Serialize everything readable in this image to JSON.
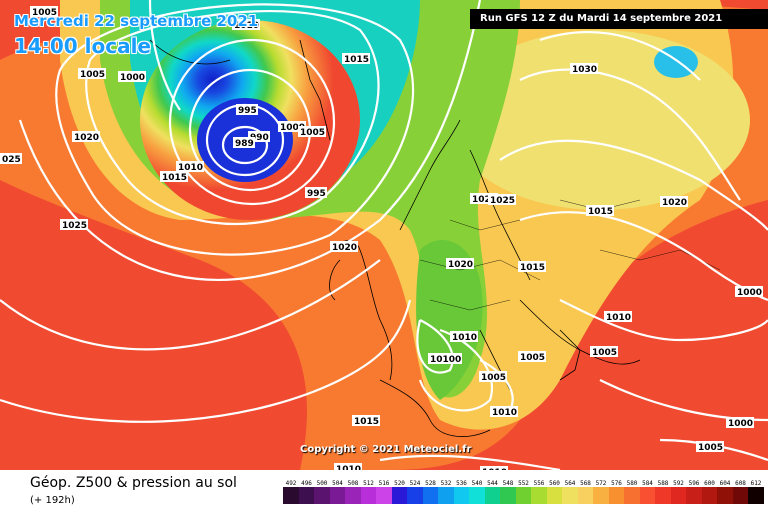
{
  "header": {
    "date": "Mercredi 22 septembre 2021",
    "time": "14:00 locale",
    "run": "Run GFS 12 Z du Mardi 14 septembre 2021"
  },
  "copyright": "Copyright © 2021 Meteociel.fr",
  "footer": {
    "title": "Géop. Z500 & pression au sol",
    "subtitle": "(+ 192h)"
  },
  "legend": {
    "values": [
      "492",
      "496",
      "500",
      "504",
      "508",
      "512",
      "516",
      "520",
      "524",
      "528",
      "532",
      "536",
      "540",
      "544",
      "548",
      "552",
      "556",
      "560",
      "564",
      "568",
      "572",
      "576",
      "580",
      "584",
      "588",
      "592",
      "596",
      "600",
      "604",
      "608",
      "612"
    ],
    "colors": [
      "#2a0a2e",
      "#3e0f4e",
      "#5a1470",
      "#7a1a94",
      "#9a24b8",
      "#b82ed8",
      "#cc44e8",
      "#2a1ad8",
      "#1840e8",
      "#1070f0",
      "#10a0f0",
      "#10c8f0",
      "#10e0d8",
      "#10d090",
      "#30c850",
      "#70d030",
      "#a8dc30",
      "#d8e040",
      "#f0e060",
      "#f8d060",
      "#f8b040",
      "#f89030",
      "#f87030",
      "#f85030",
      "#f03828",
      "#e02820",
      "#c82018",
      "#b01810",
      "#901008",
      "#700808",
      "#100000"
    ]
  },
  "isobars": [
    {
      "label": "1005"
    },
    {
      "label": "1010"
    },
    {
      "label": "1000"
    },
    {
      "label": "1005"
    },
    {
      "label": "1015"
    },
    {
      "label": "1020"
    },
    {
      "label": "1025"
    },
    {
      "label": "995"
    },
    {
      "label": "990"
    },
    {
      "label": "989"
    },
    {
      "label": "1000"
    },
    {
      "label": "1005"
    },
    {
      "label": "1010"
    },
    {
      "label": "1015"
    },
    {
      "label": "995"
    },
    {
      "label": "1025"
    },
    {
      "label": "1020"
    },
    {
      "label": "1030"
    },
    {
      "label": "1025"
    },
    {
      "label": "1015"
    },
    {
      "label": "1020"
    },
    {
      "label": "1015"
    },
    {
      "label": "1020"
    },
    {
      "label": "1000"
    },
    {
      "label": "1010"
    },
    {
      "label": "1005"
    },
    {
      "label": "1005"
    },
    {
      "label": "1010"
    },
    {
      "label": "10100"
    },
    {
      "label": "1005"
    },
    {
      "label": "1010"
    },
    {
      "label": "1015"
    },
    {
      "label": "1010"
    },
    {
      "label": "1010"
    },
    {
      "label": "1005"
    },
    {
      "label": "1000"
    },
    {
      "label": "1020"
    },
    {
      "label": "025"
    }
  ]
}
